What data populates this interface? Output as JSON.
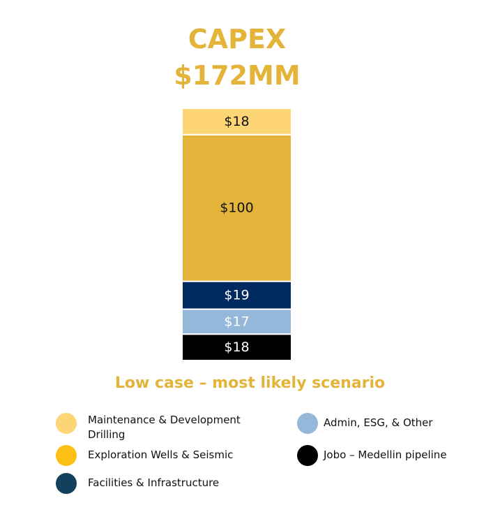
{
  "title": {
    "line1": "CAPEX",
    "line2": "$172MM"
  },
  "subtitle": "Low case – most likely scenario",
  "chart_data": {
    "type": "bar",
    "stacked": true,
    "categories": [
      "CAPEX"
    ],
    "series": [
      {
        "name": "Jobo – Medellin pipeline",
        "values": [
          18
        ],
        "label": "$18",
        "color": "#000000",
        "label_color": "#ffffff"
      },
      {
        "name": "Admin, ESG, & Other",
        "values": [
          17
        ],
        "label": "$17",
        "color": "#95b8da",
        "label_color": "#ffffff"
      },
      {
        "name": "Facilities & Infrastructure",
        "values": [
          19
        ],
        "label": "$19",
        "color": "#002a60",
        "label_color": "#ffffff"
      },
      {
        "name": "Exploration Wells & Seismic",
        "values": [
          100
        ],
        "label": "$100",
        "color": "#e4b43a",
        "label_color": "#111111"
      },
      {
        "name": "Maintenance & Development Drilling",
        "values": [
          18
        ],
        "label": "$18",
        "color": "#fdd574",
        "label_color": "#111111"
      }
    ],
    "total": 172,
    "ylim": [
      0,
      172
    ],
    "grid": false,
    "legend_position": "bottom"
  },
  "legend": [
    {
      "label": "Maintenance & Development Drilling",
      "color": "#fdd574"
    },
    {
      "label": "Exploration Wells & Seismic",
      "color": "#fdbf13"
    },
    {
      "label": "Facilities & Infrastructure",
      "color": "#13405c"
    },
    {
      "label": "Admin, ESG, & Other",
      "color": "#95b8da"
    },
    {
      "label": "Jobo – Medellin pipeline",
      "color": "#000000"
    }
  ]
}
